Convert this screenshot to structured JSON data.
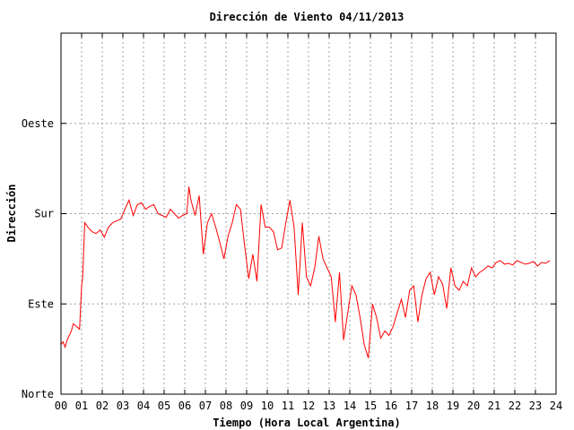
{
  "chart_data": {
    "type": "line",
    "title": "Dirección de Viento 04/11/2013",
    "xlabel": "Tiempo (Hora Local Argentina)",
    "ylabel": "Dirección",
    "xlim": [
      0,
      24
    ],
    "ylim": [
      0,
      400
    ],
    "x_ticks": [
      "00",
      "01",
      "02",
      "03",
      "04",
      "05",
      "06",
      "07",
      "08",
      "09",
      "10",
      "11",
      "12",
      "13",
      "14",
      "15",
      "16",
      "17",
      "18",
      "19",
      "20",
      "21",
      "22",
      "23",
      "24"
    ],
    "y_ticks": [
      {
        "value": 0,
        "label": "Norte"
      },
      {
        "value": 100,
        "label": "Este"
      },
      {
        "value": 200,
        "label": "Sur"
      },
      {
        "value": 300,
        "label": "Oeste"
      }
    ],
    "grid": true,
    "line_color": "#ff0000",
    "series": [
      {
        "name": "",
        "x": [
          0.0,
          0.1,
          0.2,
          0.3,
          0.4,
          0.5,
          0.6,
          0.7,
          0.8,
          0.9,
          1.0,
          1.05,
          1.15,
          1.3,
          1.5,
          1.7,
          1.9,
          2.1,
          2.3,
          2.5,
          2.7,
          2.9,
          3.1,
          3.3,
          3.5,
          3.7,
          3.9,
          4.1,
          4.3,
          4.5,
          4.7,
          4.9,
          5.1,
          5.3,
          5.5,
          5.7,
          5.9,
          6.1,
          6.2,
          6.3,
          6.5,
          6.7,
          6.9,
          7.1,
          7.3,
          7.5,
          7.7,
          7.9,
          8.1,
          8.3,
          8.5,
          8.7,
          8.9,
          9.1,
          9.3,
          9.5,
          9.7,
          9.9,
          10.1,
          10.3,
          10.5,
          10.7,
          10.9,
          11.1,
          11.3,
          11.5,
          11.7,
          11.9,
          12.1,
          12.3,
          12.5,
          12.7,
          12.9,
          13.1,
          13.3,
          13.5,
          13.7,
          13.9,
          14.1,
          14.3,
          14.5,
          14.7,
          14.9,
          15.1,
          15.3,
          15.5,
          15.7,
          15.9,
          16.1,
          16.3,
          16.5,
          16.7,
          16.9,
          17.1,
          17.3,
          17.5,
          17.7,
          17.9,
          18.1,
          18.3,
          18.5,
          18.7,
          18.9,
          19.1,
          19.3,
          19.5,
          19.7,
          19.9,
          20.1,
          20.3,
          20.5,
          20.7,
          20.9,
          21.1,
          21.3,
          21.5,
          21.7,
          21.9,
          22.1,
          22.3,
          22.5,
          22.7,
          22.9,
          23.1,
          23.3,
          23.5,
          23.7
        ],
        "y": [
          55,
          58,
          52,
          60,
          65,
          70,
          78,
          76,
          74,
          72,
          120,
          130,
          190,
          185,
          180,
          178,
          182,
          174,
          185,
          190,
          192,
          194,
          205,
          215,
          198,
          210,
          212,
          205,
          208,
          210,
          200,
          198,
          196,
          205,
          200,
          195,
          198,
          200,
          230,
          215,
          198,
          220,
          155,
          190,
          200,
          185,
          168,
          150,
          175,
          190,
          210,
          205,
          165,
          128,
          155,
          125,
          210,
          185,
          185,
          180,
          160,
          162,
          190,
          215,
          185,
          110,
          190,
          130,
          120,
          140,
          175,
          150,
          140,
          130,
          80,
          135,
          60,
          90,
          120,
          110,
          85,
          55,
          40,
          100,
          85,
          62,
          70,
          65,
          75,
          90,
          105,
          85,
          115,
          120,
          80,
          110,
          128,
          135,
          110,
          130,
          122,
          95,
          140,
          120,
          115,
          125,
          120,
          140,
          130,
          135,
          138,
          142,
          140,
          146,
          148,
          144,
          145,
          143,
          148,
          146,
          144,
          145,
          147,
          142,
          146,
          145,
          148
        ]
      }
    ]
  }
}
